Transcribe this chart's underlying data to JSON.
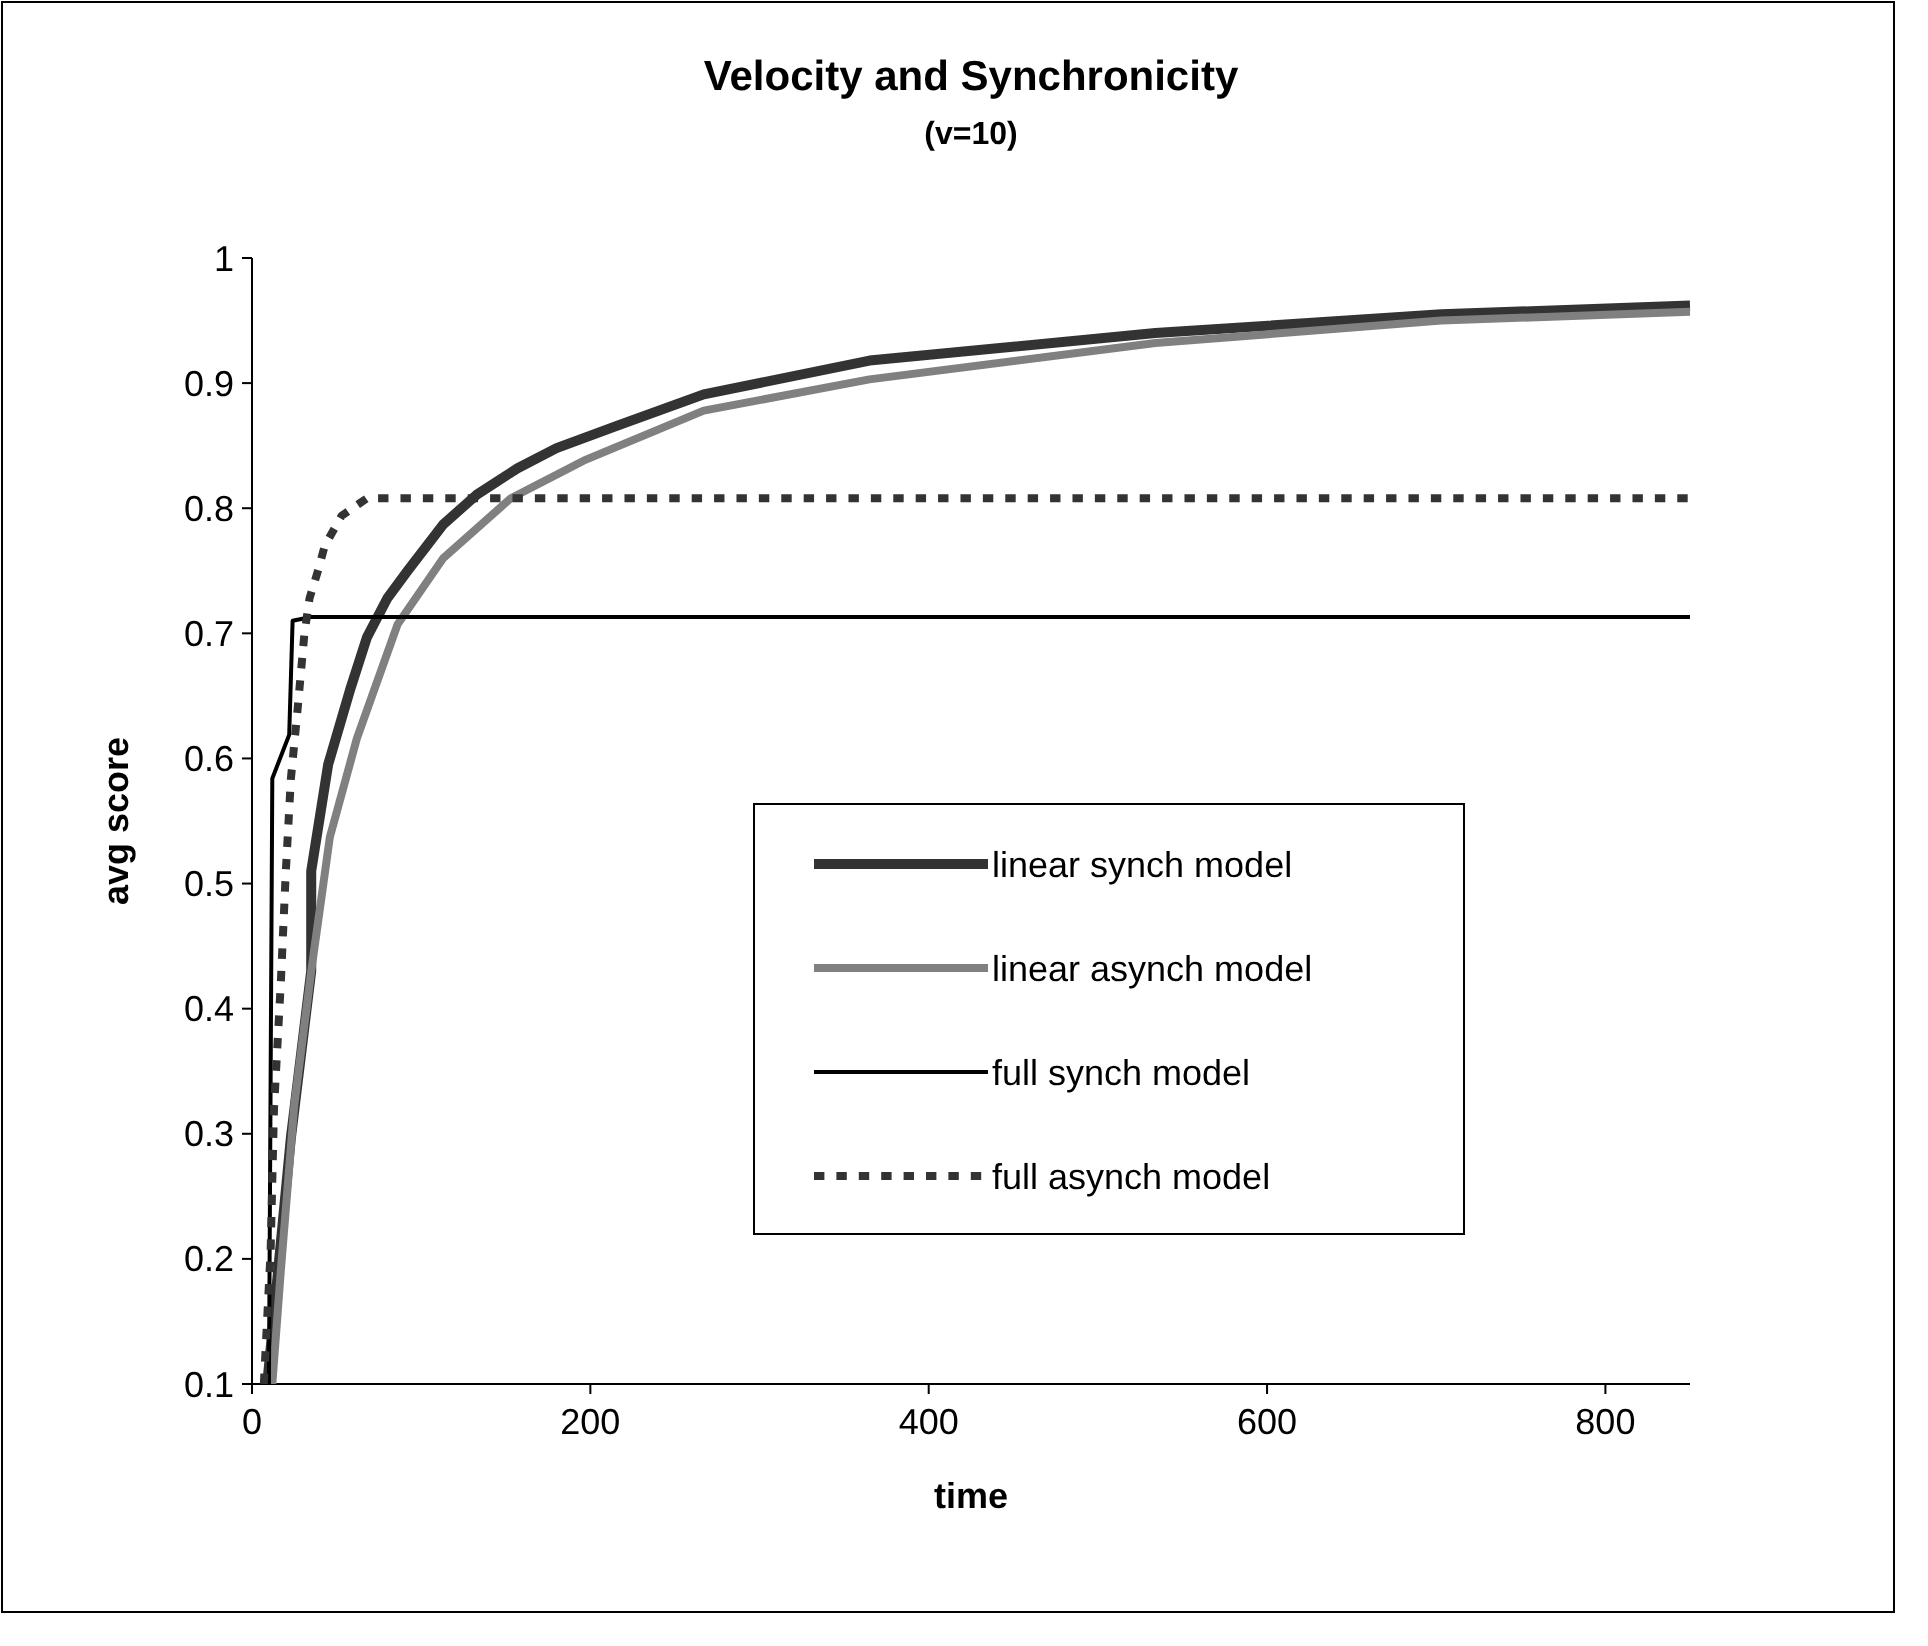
{
  "chart_data": {
    "type": "line",
    "title": "Velocity and Synchronicity",
    "subtitle": "(v=10)",
    "xlabel": "time",
    "ylabel": "avg score",
    "xlim": [
      0,
      850
    ],
    "ylim": [
      0.1,
      1
    ],
    "xticks": [
      0,
      200,
      400,
      600,
      800
    ],
    "yticks": [
      0.1,
      0.2,
      0.3,
      0.4,
      0.5,
      0.6,
      0.7,
      0.8,
      0.9,
      1
    ],
    "grid": false,
    "legend": "bottom right",
    "marker": "none",
    "series": [
      {
        "name": "linear synch model",
        "color": "#333333",
        "line_style": "solid",
        "x": [
          9,
          23,
          35,
          35,
          45,
          58,
          68,
          80,
          92,
          113,
          133,
          157,
          180,
          216,
          267,
          365,
          534,
          703,
          850
        ],
        "values": [
          0.1,
          0.297,
          0.43,
          0.51,
          0.595,
          0.655,
          0.697,
          0.728,
          0.75,
          0.787,
          0.811,
          0.832,
          0.848,
          0.866,
          0.891,
          0.918,
          0.94,
          0.955,
          0.962
        ]
      },
      {
        "name": "linear asynch model",
        "color": "#808080",
        "line_style": "solid",
        "x": [
          12,
          17,
          25,
          35,
          46,
          62,
          86,
          113,
          153,
          196,
          267,
          365,
          534,
          703,
          850
        ],
        "values": [
          0.1,
          0.19,
          0.323,
          0.43,
          0.537,
          0.616,
          0.707,
          0.76,
          0.808,
          0.838,
          0.878,
          0.903,
          0.932,
          0.95,
          0.957
        ]
      },
      {
        "name": "full synch model",
        "color": "#000000",
        "line_style": "solid",
        "x": [
          10,
          12,
          22,
          24,
          35,
          850
        ],
        "values": [
          0.1,
          0.584,
          0.619,
          0.71,
          0.713,
          0.713
        ]
      },
      {
        "name": "full asynch model",
        "color": "#333333",
        "line_style": "dotted",
        "x": [
          7,
          11,
          13,
          17,
          20,
          23,
          27,
          31,
          34,
          39,
          43,
          53,
          68,
          850
        ],
        "values": [
          0.1,
          0.206,
          0.32,
          0.42,
          0.51,
          0.584,
          0.64,
          0.7,
          0.728,
          0.75,
          0.77,
          0.794,
          0.808,
          0.808
        ]
      }
    ]
  }
}
